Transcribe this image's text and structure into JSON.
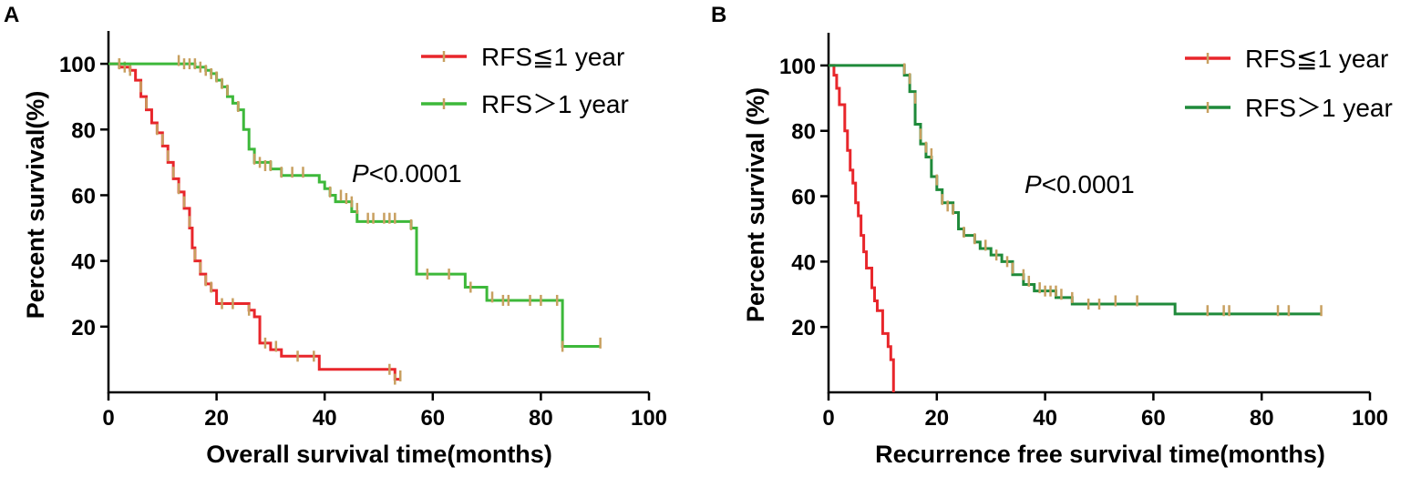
{
  "colors": {
    "red": "#e8262b",
    "green_a": "#3db83a",
    "green_b": "#1f8a3a",
    "censor": "#c8a060"
  },
  "chart_data": [
    {
      "type": "line",
      "panel": "A",
      "xlabel": "Overall survival time(months)",
      "ylabel": "Percent survival(%)",
      "xlim": [
        0,
        100
      ],
      "ylim": [
        0,
        110
      ],
      "xticks": [
        "0",
        "20",
        "40",
        "60",
        "80",
        "100"
      ],
      "yticks": [
        "20",
        "40",
        "60",
        "80",
        "100"
      ],
      "annotation": {
        "p": "P",
        "rest": "<0.0001"
      },
      "series": [
        {
          "name": "RFS≦1 year",
          "color": "#e8262b",
          "steps": [
            [
              0,
              100
            ],
            [
              2,
              99
            ],
            [
              4,
              98
            ],
            [
              5,
              95
            ],
            [
              6,
              90
            ],
            [
              7,
              86
            ],
            [
              8,
              82
            ],
            [
              9,
              79
            ],
            [
              10,
              75
            ],
            [
              11,
              70
            ],
            [
              12,
              65
            ],
            [
              13,
              61
            ],
            [
              14,
              56
            ],
            [
              15,
              50
            ],
            [
              15.5,
              44
            ],
            [
              16,
              40
            ],
            [
              17,
              36
            ],
            [
              18,
              33
            ],
            [
              19,
              31
            ],
            [
              20,
              27
            ],
            [
              26,
              25
            ],
            [
              27,
              23
            ],
            [
              28,
              15
            ],
            [
              30,
              13
            ],
            [
              32,
              11
            ],
            [
              39,
              7
            ],
            [
              53,
              4
            ],
            [
              54,
              4
            ]
          ],
          "censored": [
            [
              2,
              100
            ],
            [
              3,
              99
            ],
            [
              4,
              98
            ],
            [
              6,
              93
            ],
            [
              7,
              88
            ],
            [
              9,
              80
            ],
            [
              10,
              77
            ],
            [
              11,
              72
            ],
            [
              12,
              67
            ],
            [
              13,
              62
            ],
            [
              14,
              58
            ],
            [
              15,
              52
            ],
            [
              16,
              42
            ],
            [
              17,
              38
            ],
            [
              18,
              34
            ],
            [
              19,
              32
            ],
            [
              21,
              27
            ],
            [
              23,
              27
            ],
            [
              26,
              25
            ],
            [
              29,
              15
            ],
            [
              31,
              14
            ],
            [
              35,
              11
            ],
            [
              38,
              11
            ],
            [
              52,
              7
            ],
            [
              53,
              4
            ],
            [
              54,
              5
            ]
          ]
        },
        {
          "name": "RFS＞1 year",
          "color": "#3db83a",
          "steps": [
            [
              0,
              100
            ],
            [
              12,
              100
            ],
            [
              16,
              99
            ],
            [
              18,
              98
            ],
            [
              19,
              97
            ],
            [
              20,
              95
            ],
            [
              21,
              93
            ],
            [
              22,
              90
            ],
            [
              23,
              88
            ],
            [
              24,
              86
            ],
            [
              25,
              80
            ],
            [
              26,
              74
            ],
            [
              27,
              70
            ],
            [
              30,
              68
            ],
            [
              32,
              66
            ],
            [
              39,
              64
            ],
            [
              40,
              62
            ],
            [
              41,
              60
            ],
            [
              42,
              58
            ],
            [
              45,
              55
            ],
            [
              46,
              52
            ],
            [
              56,
              50
            ],
            [
              57,
              36
            ],
            [
              66,
              32
            ],
            [
              70,
              28
            ],
            [
              84,
              14
            ],
            [
              91,
              14
            ]
          ],
          "censored": [
            [
              2,
              100
            ],
            [
              13,
              101
            ],
            [
              14,
              100
            ],
            [
              15,
              100
            ],
            [
              16,
              100
            ],
            [
              17,
              99
            ],
            [
              18,
              98
            ],
            [
              19,
              97
            ],
            [
              20,
              96
            ],
            [
              21,
              94
            ],
            [
              22,
              92
            ],
            [
              24,
              87
            ],
            [
              27,
              71
            ],
            [
              28,
              70
            ],
            [
              29,
              69
            ],
            [
              30,
              69
            ],
            [
              32,
              67
            ],
            [
              34,
              67
            ],
            [
              36,
              67
            ],
            [
              41,
              61
            ],
            [
              43,
              60
            ],
            [
              44,
              59
            ],
            [
              45,
              58
            ],
            [
              46,
              56
            ],
            [
              48,
              53
            ],
            [
              49,
              53
            ],
            [
              51,
              53
            ],
            [
              52,
              53
            ],
            [
              53,
              53
            ],
            [
              56,
              51
            ],
            [
              59,
              36
            ],
            [
              63,
              36
            ],
            [
              67,
              32
            ],
            [
              71,
              29
            ],
            [
              73,
              28
            ],
            [
              74,
              28
            ],
            [
              78,
              28
            ],
            [
              80,
              28
            ],
            [
              83,
              28
            ],
            [
              84,
              14
            ],
            [
              91,
              15
            ]
          ]
        }
      ]
    },
    {
      "type": "line",
      "panel": "B",
      "xlabel": "Recurrence free survival time(months)",
      "ylabel": "Percent survival (%)",
      "xlim": [
        0,
        100
      ],
      "ylim": [
        0,
        110
      ],
      "xticks": [
        "0",
        "20",
        "40",
        "60",
        "80",
        "100"
      ],
      "yticks": [
        "20",
        "40",
        "60",
        "80",
        "100"
      ],
      "annotation": {
        "p": "P",
        "rest": "<0.0001"
      },
      "series": [
        {
          "name": "RFS≦1 year",
          "color": "#e8262b",
          "steps": [
            [
              0,
              100
            ],
            [
              1,
              97
            ],
            [
              1.5,
              93
            ],
            [
              2,
              88
            ],
            [
              3,
              80
            ],
            [
              3.5,
              74
            ],
            [
              4,
              68
            ],
            [
              4.5,
              64
            ],
            [
              5,
              58
            ],
            [
              5.5,
              54
            ],
            [
              6,
              48
            ],
            [
              6.5,
              43
            ],
            [
              7,
              38
            ],
            [
              8,
              32
            ],
            [
              8.5,
              28
            ],
            [
              9,
              25
            ],
            [
              10,
              18
            ],
            [
              11,
              14
            ],
            [
              11.5,
              10
            ],
            [
              12,
              0
            ]
          ],
          "censored": []
        },
        {
          "name": "RFS＞1 year",
          "color": "#1f8a3a",
          "steps": [
            [
              0,
              100
            ],
            [
              13,
              100
            ],
            [
              14,
              97
            ],
            [
              15,
              92
            ],
            [
              16,
              82
            ],
            [
              17,
              76
            ],
            [
              18,
              72
            ],
            [
              19,
              66
            ],
            [
              20,
              62
            ],
            [
              21,
              58
            ],
            [
              23,
              55
            ],
            [
              24,
              50
            ],
            [
              25,
              48
            ],
            [
              27,
              46
            ],
            [
              28,
              44
            ],
            [
              30,
              42
            ],
            [
              32,
              40
            ],
            [
              34,
              36
            ],
            [
              36,
              33
            ],
            [
              38,
              31
            ],
            [
              42,
              29
            ],
            [
              45,
              27
            ],
            [
              64,
              24
            ],
            [
              91,
              24
            ]
          ],
          "censored": [
            [
              14,
              99
            ],
            [
              15,
              96
            ],
            [
              16,
              90
            ],
            [
              17,
              79
            ],
            [
              18,
              75
            ],
            [
              19,
              73
            ],
            [
              20,
              65
            ],
            [
              21,
              59
            ],
            [
              22,
              57
            ],
            [
              23,
              56
            ],
            [
              25,
              49
            ],
            [
              27,
              47
            ],
            [
              29,
              45
            ],
            [
              31,
              42
            ],
            [
              33,
              40
            ],
            [
              34,
              38
            ],
            [
              36,
              36
            ],
            [
              37,
              34
            ],
            [
              39,
              32
            ],
            [
              40,
              31
            ],
            [
              41,
              31
            ],
            [
              42,
              31
            ],
            [
              43,
              30
            ],
            [
              45,
              29
            ],
            [
              48,
              27
            ],
            [
              50,
              27
            ],
            [
              53,
              28
            ],
            [
              57,
              28
            ],
            [
              70,
              25
            ],
            [
              73,
              25
            ],
            [
              74,
              25
            ],
            [
              83,
              25
            ],
            [
              85,
              25
            ],
            [
              91,
              25
            ]
          ]
        }
      ]
    }
  ]
}
